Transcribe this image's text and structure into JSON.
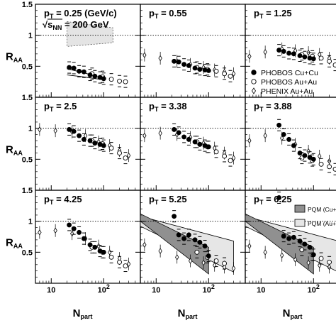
{
  "chart_data": {
    "type": "scatter",
    "layout": "3x3 grid",
    "ylabel": "R",
    "ylabel_sub": "AA",
    "xlabel": "N",
    "xlabel_sub": "part",
    "x_scale": "log",
    "xlim": [
      5,
      500
    ],
    "ylim": [
      0,
      1.5
    ],
    "x_ticks": [
      {
        "value": 10,
        "label": "10",
        "exp": ""
      },
      {
        "value": 100,
        "label": "10",
        "exp": "2"
      }
    ],
    "y_ticks": [
      0.5,
      1,
      1.5
    ],
    "y_tick_labels": [
      "0.5",
      "1",
      "1.5"
    ],
    "reference_line_y": 1,
    "energy_label": {
      "prefix": "√s",
      "sub": "NN",
      "suffix": " = 200 GeV"
    },
    "legend_markers": [
      {
        "label": "PHOBOS Cu+Cu",
        "marker": "filled-circle"
      },
      {
        "label": "PHOBOS Au+Au",
        "marker": "open-circle"
      },
      {
        "label": "PHENIX Au+Au",
        "marker": "open-diamond"
      }
    ],
    "legend_bands": [
      {
        "label": "PQM (Cu+Cu)",
        "color": "#909090"
      },
      {
        "label": "PQM (Au+Au)",
        "color": "#e6e6e6"
      }
    ],
    "colors": {
      "foreground": "#000000",
      "cu_band": "#909090",
      "au_band": "#e6e6e6",
      "sys_band": "#e4e4e4"
    },
    "panels": [
      {
        "pt_label": "p",
        "pt_sub": "T",
        "pt_value": " = 0.25 (GeV/c)",
        "phobos_cucu": [
          [
            22,
            0.48
          ],
          [
            27,
            0.47
          ],
          [
            34,
            0.42
          ],
          [
            42,
            0.41
          ],
          [
            55,
            0.36
          ],
          [
            68,
            0.34
          ],
          [
            85,
            0.32
          ],
          [
            100,
            0.3
          ]
        ],
        "phobos_auau": [
          [
            60,
            0.38
          ],
          [
            95,
            0.33
          ],
          [
            140,
            0.29
          ],
          [
            200,
            0.26
          ],
          [
            260,
            0.25
          ]
        ],
        "phenix_auau": [],
        "syst_band": {
          "x": [
            20,
            150
          ],
          "low": [
            0.82,
            0.88
          ],
          "high": [
            1.22,
            1.12
          ]
        },
        "model_lines": [
          [
            [
              20,
              0.46
            ],
            [
              40,
              0.4
            ],
            [
              70,
              0.34
            ],
            [
              100,
              0.3
            ]
          ],
          [
            [
              20,
              0.36
            ],
            [
              40,
              0.33
            ],
            [
              70,
              0.3
            ],
            [
              100,
              0.28
            ]
          ]
        ]
      },
      {
        "pt_label": "p",
        "pt_sub": "T",
        "pt_value": " = 0.55",
        "phobos_cucu": [
          [
            22,
            0.58
          ],
          [
            27,
            0.57
          ],
          [
            34,
            0.53
          ],
          [
            42,
            0.51
          ],
          [
            55,
            0.47
          ],
          [
            68,
            0.45
          ],
          [
            85,
            0.44
          ],
          [
            100,
            0.43
          ]
        ],
        "phobos_auau": [
          [
            60,
            0.48
          ],
          [
            95,
            0.45
          ],
          [
            140,
            0.42
          ],
          [
            200,
            0.38
          ],
          [
            260,
            0.34
          ]
        ],
        "phenix_auau": [
          [
            6,
            0.68
          ],
          [
            12,
            0.63
          ],
          [
            25,
            0.58
          ],
          [
            45,
            0.53
          ],
          [
            80,
            0.48
          ],
          [
            130,
            0.44
          ],
          [
            200,
            0.41
          ],
          [
            300,
            0.38
          ]
        ]
      },
      {
        "pt_label": "p",
        "pt_sub": "T",
        "pt_value": " = 1.25",
        "phobos_cucu": [
          [
            22,
            0.76
          ],
          [
            27,
            0.74
          ],
          [
            34,
            0.71
          ],
          [
            42,
            0.7
          ],
          [
            55,
            0.67
          ],
          [
            68,
            0.65
          ],
          [
            85,
            0.63
          ],
          [
            100,
            0.62
          ]
        ],
        "phobos_auau": [
          [
            60,
            0.69
          ],
          [
            95,
            0.66
          ],
          [
            140,
            0.63
          ],
          [
            200,
            0.58
          ],
          [
            260,
            0.52
          ]
        ],
        "phenix_auau": [
          [
            6,
            0.66
          ],
          [
            12,
            0.73
          ],
          [
            25,
            0.78
          ],
          [
            45,
            0.75
          ],
          [
            80,
            0.72
          ],
          [
            130,
            0.69
          ],
          [
            200,
            0.63
          ],
          [
            300,
            0.56
          ]
        ],
        "show_marker_legend": true
      },
      {
        "pt_label": "p",
        "pt_sub": "T",
        "pt_value": " = 2.5",
        "phobos_cucu": [
          [
            22,
            0.98
          ],
          [
            27,
            0.95
          ],
          [
            34,
            0.88
          ],
          [
            42,
            0.82
          ],
          [
            55,
            0.8
          ],
          [
            68,
            0.76
          ],
          [
            85,
            0.74
          ],
          [
            100,
            0.72
          ]
        ],
        "phobos_auau": [
          [
            60,
            0.8
          ],
          [
            95,
            0.75
          ],
          [
            140,
            0.68
          ],
          [
            200,
            0.6
          ],
          [
            260,
            0.52
          ]
        ],
        "phenix_auau": [
          [
            6,
            0.98
          ],
          [
            12,
            0.96
          ],
          [
            25,
            0.94
          ],
          [
            45,
            0.88
          ],
          [
            80,
            0.78
          ],
          [
            130,
            0.72
          ],
          [
            200,
            0.64
          ],
          [
            300,
            0.56
          ]
        ]
      },
      {
        "pt_label": "p",
        "pt_sub": "T",
        "pt_value": " = 3.38",
        "phobos_cucu": [
          [
            22,
            0.98
          ],
          [
            27,
            0.93
          ],
          [
            34,
            0.86
          ],
          [
            42,
            0.82
          ],
          [
            55,
            0.78
          ],
          [
            68,
            0.74
          ],
          [
            85,
            0.72
          ],
          [
            100,
            0.7
          ]
        ],
        "phobos_auau": [
          [
            60,
            0.78
          ],
          [
            95,
            0.7
          ],
          [
            140,
            0.62
          ],
          [
            200,
            0.55
          ],
          [
            260,
            0.48
          ]
        ],
        "phenix_auau": [
          [
            6,
            0.88
          ],
          [
            12,
            0.92
          ],
          [
            25,
            0.9
          ],
          [
            45,
            0.85
          ],
          [
            80,
            0.76
          ],
          [
            130,
            0.68
          ],
          [
            200,
            0.6
          ],
          [
            300,
            0.52
          ]
        ]
      },
      {
        "pt_label": "p",
        "pt_sub": "T",
        "pt_value": " = 3.88",
        "phobos_cucu": [
          [
            22,
            1.05
          ],
          [
            27,
            0.9
          ],
          [
            34,
            0.82
          ],
          [
            42,
            0.72
          ],
          [
            55,
            0.6
          ],
          [
            68,
            0.56
          ],
          [
            85,
            0.53
          ],
          [
            100,
            0.5
          ]
        ],
        "phobos_auau": [
          [
            60,
            0.52
          ],
          [
            95,
            0.48
          ],
          [
            140,
            0.42
          ],
          [
            200,
            0.38
          ],
          [
            260,
            0.34
          ]
        ],
        "phenix_auau": [
          [
            6,
            0.8
          ],
          [
            12,
            0.88
          ],
          [
            25,
            0.84
          ],
          [
            45,
            0.74
          ],
          [
            80,
            0.63
          ],
          [
            130,
            0.55
          ],
          [
            200,
            0.47
          ],
          [
            300,
            0.4
          ]
        ]
      },
      {
        "pt_label": "p",
        "pt_sub": "T",
        "pt_value": " = 4.25",
        "phobos_cucu": [
          [
            22,
            0.94
          ],
          [
            27,
            0.88
          ],
          [
            34,
            0.82
          ],
          [
            42,
            0.72
          ],
          [
            55,
            0.62
          ],
          [
            68,
            0.58
          ],
          [
            85,
            0.52
          ],
          [
            100,
            0.5
          ]
        ],
        "phobos_auau": [
          [
            60,
            0.58
          ],
          [
            95,
            0.5
          ],
          [
            140,
            0.42
          ],
          [
            200,
            0.34
          ],
          [
            260,
            0.28
          ]
        ],
        "phenix_auau": [
          [
            6,
            0.82
          ],
          [
            12,
            0.85
          ],
          [
            25,
            0.8
          ],
          [
            45,
            0.72
          ],
          [
            80,
            0.6
          ],
          [
            130,
            0.5
          ],
          [
            200,
            0.4
          ],
          [
            300,
            0.31
          ]
        ]
      },
      {
        "pt_label": "p",
        "pt_sub": "T",
        "pt_value": " = 5.25",
        "phobos_cucu": [
          [
            22,
            1.08
          ],
          [
            27,
            0.78
          ],
          [
            34,
            0.72
          ],
          [
            42,
            0.78
          ],
          [
            55,
            0.7
          ],
          [
            68,
            0.66
          ],
          [
            85,
            0.6
          ],
          [
            100,
            0.44
          ]
        ],
        "phobos_auau": [
          [
            60,
            0.5
          ],
          [
            95,
            0.42
          ],
          [
            140,
            0.36
          ],
          [
            200,
            0.32
          ]
        ],
        "phenix_auau": [
          [
            6,
            0.62
          ],
          [
            12,
            0.52
          ],
          [
            25,
            0.42
          ],
          [
            45,
            0.36
          ],
          [
            80,
            0.33
          ],
          [
            130,
            0.29
          ],
          [
            200,
            0.26
          ],
          [
            300,
            0.24
          ]
        ],
        "bands": [
          {
            "key": "cucu",
            "x": [
              5,
              100
            ],
            "low": [
              1.0,
              0.15
            ],
            "high": [
              1.12,
              0.58
            ]
          },
          {
            "key": "auau",
            "x": [
              5,
              300
            ],
            "low": [
              0.92,
              0.18
            ],
            "high": [
              1.08,
              0.68
            ]
          }
        ]
      },
      {
        "pt_label": "p",
        "pt_sub": "T",
        "pt_value": " = 6.25",
        "phobos_cucu": [
          [
            22,
            1.38
          ],
          [
            27,
            0.76
          ],
          [
            34,
            0.72
          ],
          [
            42,
            0.74
          ],
          [
            55,
            0.68
          ],
          [
            68,
            0.63
          ],
          [
            85,
            0.58
          ],
          [
            100,
            0.46
          ]
        ],
        "phobos_auau": [
          [
            60,
            0.54
          ],
          [
            95,
            0.46
          ],
          [
            140,
            0.4
          ],
          [
            200,
            0.34
          ]
        ],
        "phenix_auau": [
          [
            6,
            0.6
          ],
          [
            12,
            0.5
          ],
          [
            25,
            0.45
          ],
          [
            45,
            0.38
          ],
          [
            80,
            0.33
          ],
          [
            130,
            0.29
          ],
          [
            200,
            0.26
          ],
          [
            300,
            0.24
          ]
        ],
        "bands": [
          {
            "key": "cucu",
            "x": [
              5,
              100
            ],
            "low": [
              1.0,
              0.15
            ],
            "high": [
              1.12,
              0.58
            ]
          },
          {
            "key": "auau",
            "x": [
              5,
              300
            ],
            "low": [
              0.92,
              0.18
            ],
            "high": [
              1.08,
              0.68
            ]
          }
        ],
        "show_band_legend": true
      }
    ]
  }
}
